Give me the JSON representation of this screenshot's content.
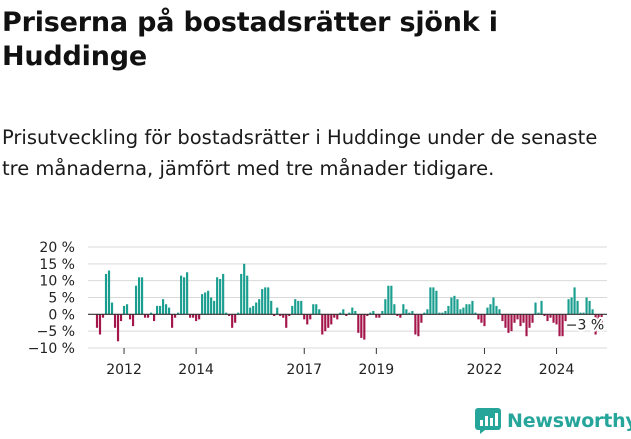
{
  "header": {
    "title": "Priserna på bostadsrätter sjönk i Huddinge",
    "subtitle": "Prisutveckling för bostadsrätter i Huddinge under de senaste tre månaderna, jämfört med tre månader tidigare."
  },
  "brand": {
    "name": "Newsworthy"
  },
  "colors": {
    "positive": "#1a9e8f",
    "negative": "#a4154a",
    "grid": "#d9d9d9",
    "axis": "#333333",
    "logo": "#26a69a"
  },
  "chart_data": {
    "type": "bar",
    "title": "",
    "xlabel": "",
    "ylabel": "",
    "ylim": [
      -10,
      20
    ],
    "xlim": [
      2011.0,
      2025.4
    ],
    "y_ticks": [
      20,
      15,
      10,
      5,
      0,
      -5,
      -10
    ],
    "y_tick_labels": [
      "20 %",
      "15 %",
      "10 %",
      "5 %",
      "0 %",
      "−5 %",
      "−10 %"
    ],
    "x_ticks": [
      2012,
      2014,
      2017,
      2019,
      2022,
      2024
    ],
    "x_tick_labels": [
      "2012",
      "2014",
      "2017",
      "2019",
      "2022",
      "2024"
    ],
    "grid": true,
    "legend": "none",
    "start": 2011.25,
    "step": 0.0833333,
    "values": [
      -4,
      -6,
      -1,
      12,
      13,
      3.5,
      -4,
      -8,
      -2,
      2.5,
      3,
      -1.5,
      -3.5,
      8.5,
      11,
      11,
      -1,
      -1,
      0.5,
      -2,
      2.5,
      2.5,
      4.5,
      3,
      2,
      -4,
      -1,
      0.5,
      11.5,
      11,
      12.5,
      -1,
      -1,
      -2,
      -1.5,
      6,
      6.5,
      7,
      5,
      4,
      11,
      10.5,
      12,
      0.5,
      -0.5,
      -4,
      -2.5,
      0.5,
      12,
      15,
      11.5,
      2,
      2.5,
      3.5,
      4.5,
      7.5,
      8,
      8,
      4,
      -0.5,
      2,
      -0.5,
      -1,
      -4,
      -0.5,
      2.5,
      4.5,
      4,
      4,
      -1.5,
      -3,
      -1.5,
      3,
      3,
      1.5,
      -6,
      -5,
      -4,
      -3,
      -1,
      -1.5,
      0.5,
      1.5,
      -0.5,
      0.5,
      2,
      1,
      -5.5,
      -7,
      -7.5,
      -0.5,
      0.5,
      1,
      -1,
      -1,
      1,
      4.5,
      8.5,
      8.5,
      3,
      -0.5,
      -1,
      3,
      1.5,
      0.5,
      1,
      -6,
      -6.5,
      -2.5,
      0.5,
      1.5,
      8,
      8,
      7,
      0.5,
      0.5,
      1,
      2.5,
      5,
      5.5,
      4.5,
      1.5,
      2,
      3,
      3,
      4,
      0.5,
      -1.5,
      -2.5,
      -3.5,
      2,
      3,
      5,
      2.5,
      1.5,
      -2,
      -4,
      -5.5,
      -5,
      -2.5,
      -1.5,
      -3.5,
      -2.5,
      -6.5,
      -4,
      -2.5,
      3.5,
      0.5,
      4,
      -0.5,
      -2,
      -1,
      -2.5,
      -3,
      -6.5,
      -6.5,
      -2,
      4.5,
      5,
      8,
      4,
      0.5,
      0.5,
      5,
      4,
      1.5,
      -6,
      -3,
      -3
    ],
    "annotations": [
      {
        "label": "−3 %",
        "x": 2025.0,
        "y": -3
      }
    ]
  }
}
